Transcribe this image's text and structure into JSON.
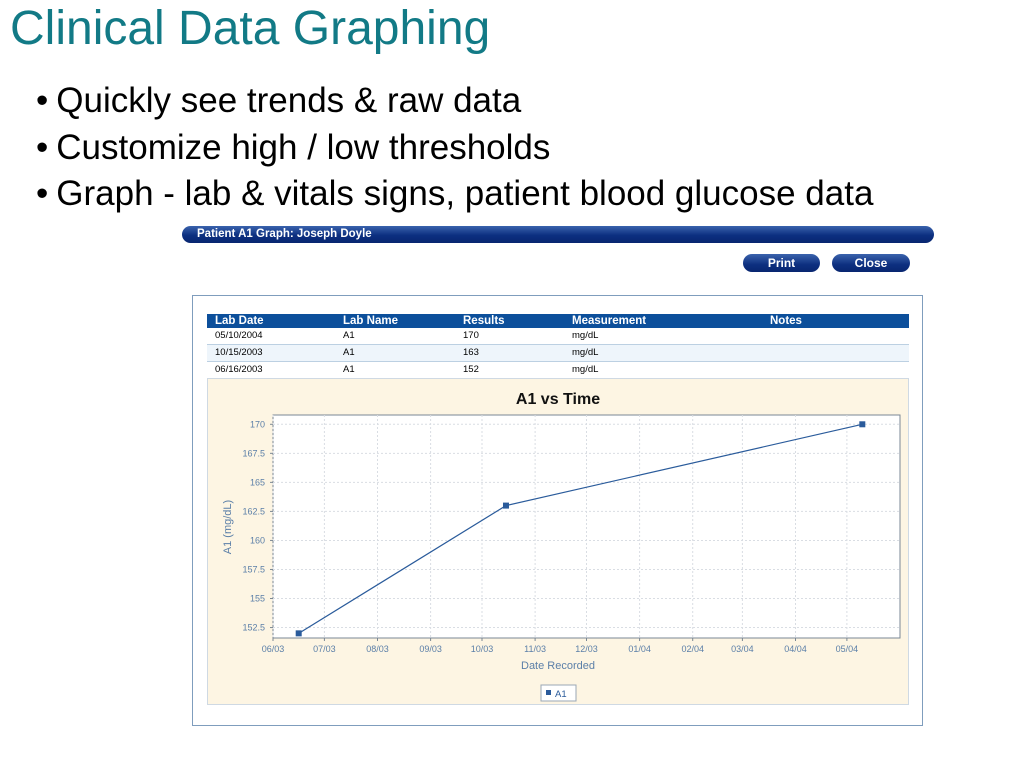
{
  "slide": {
    "title": "Clinical Data Graphing",
    "bullets": [
      "Quickly see trends & raw data",
      "Customize high / low thresholds",
      "Graph - lab & vitals signs, patient blood glucose data"
    ]
  },
  "window": {
    "title": "Patient A1 Graph: Joseph Doyle",
    "print_label": "Print",
    "close_label": "Close"
  },
  "table": {
    "headers": [
      "Lab Date",
      "Lab Name",
      "Results",
      "Measurement",
      "Notes"
    ],
    "rows": [
      [
        "05/10/2004",
        "A1",
        "170",
        "mg/dL",
        ""
      ],
      [
        "10/15/2003",
        "A1",
        "163",
        "mg/dL",
        ""
      ],
      [
        "06/16/2003",
        "A1",
        "152",
        "mg/dL",
        ""
      ]
    ]
  },
  "colors": {
    "title": "#127a86",
    "header_bar": "#0c4f9b",
    "chart_bg": "#fdf5e3",
    "series": "#2a5b9b",
    "axis_text": "#5b7fa8"
  },
  "chart_data": {
    "type": "line",
    "title": "A1 vs Time",
    "xlabel": "Date Recorded",
    "ylabel": "A1  (mg/dL)",
    "x_ticks": [
      "06/03",
      "07/03",
      "08/03",
      "09/03",
      "10/03",
      "11/03",
      "12/03",
      "01/04",
      "02/04",
      "03/04",
      "04/04",
      "05/04"
    ],
    "y_ticks": [
      152.5,
      155,
      157.5,
      160,
      162.5,
      165,
      167.5,
      170
    ],
    "ylim": [
      151.6,
      170.8
    ],
    "xlim": [
      "2003-06-01",
      "2004-06-01"
    ],
    "grid": true,
    "legend": "bottom",
    "series": [
      {
        "name": "A1",
        "points": [
          {
            "x": "2003-06-16",
            "y": 152
          },
          {
            "x": "2003-10-15",
            "y": 163
          },
          {
            "x": "2004-05-10",
            "y": 170
          }
        ]
      }
    ]
  }
}
